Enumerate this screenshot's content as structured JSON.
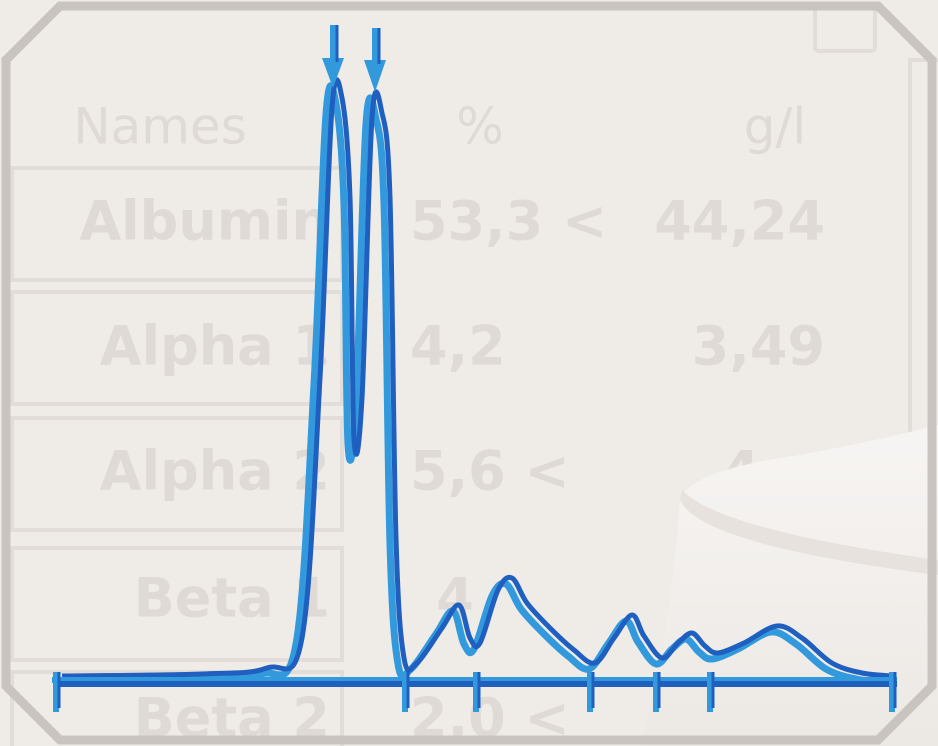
{
  "table": {
    "header": [
      "Names",
      "%",
      "g/l"
    ],
    "rows": [
      [
        "Albumin",
        "53,3 <",
        "44,24"
      ],
      [
        "Alpha 1",
        "4,2",
        "3,49"
      ],
      [
        "Alpha 2",
        "5,6 <",
        "4"
      ],
      [
        "Beta 1",
        "4"
      ],
      [
        "Beta 2",
        "2,0 <"
      ]
    ]
  }
}
